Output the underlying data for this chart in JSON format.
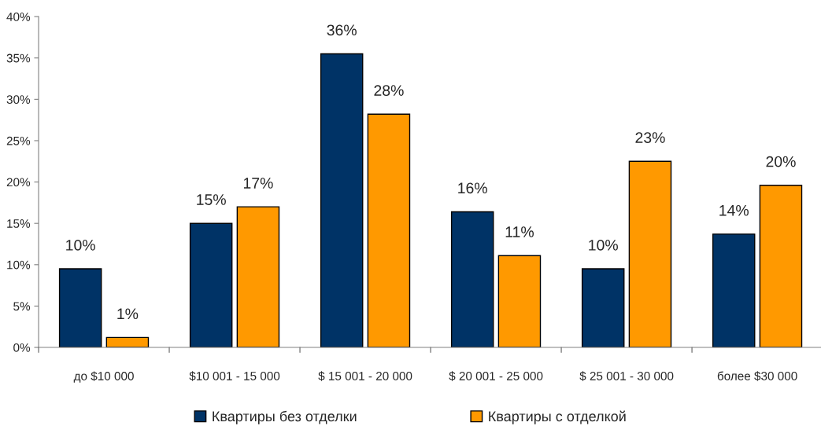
{
  "chart_data": {
    "type": "bar",
    "categories": [
      "до $10 000",
      "$10 001 - 15 000",
      "$ 15 001 - 20 000",
      "$ 20 001 - 25 000",
      "$ 25 001 - 30 000",
      "более $30 000"
    ],
    "series": [
      {
        "name": "Квартиры без отделки",
        "color": "#003366",
        "values": [
          9.5,
          15.0,
          35.5,
          16.4,
          9.5,
          13.7
        ],
        "value_labels": [
          "10%",
          "15%",
          "36%",
          "16%",
          "10%",
          "14%"
        ]
      },
      {
        "name": "Квартиры с отделкой",
        "color": "#ff9900",
        "values": [
          1.2,
          17.0,
          28.2,
          11.1,
          22.5,
          19.6
        ],
        "value_labels": [
          "1%",
          "17%",
          "28%",
          "11%",
          "23%",
          "20%"
        ]
      }
    ],
    "ylim": [
      0,
      40
    ],
    "yticks": [
      {
        "value": 0,
        "label": "0%"
      },
      {
        "value": 5,
        "label": "5%"
      },
      {
        "value": 10,
        "label": "10%"
      },
      {
        "value": 15,
        "label": "15%"
      },
      {
        "value": 20,
        "label": "20%"
      },
      {
        "value": 25,
        "label": "25%"
      },
      {
        "value": 30,
        "label": "30%"
      },
      {
        "value": 35,
        "label": "35%"
      },
      {
        "value": 40,
        "label": "40%"
      }
    ],
    "grid": false,
    "legend": "bottom"
  }
}
